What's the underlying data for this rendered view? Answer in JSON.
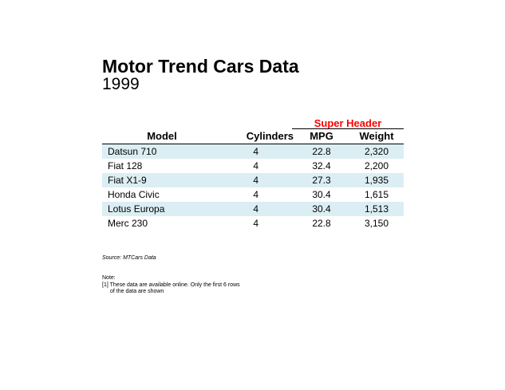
{
  "title": "Motor Trend Cars Data",
  "subtitle": "1999",
  "super_header": "Super Header",
  "super_header_color": "#ff0000",
  "row_shade_color": "#dbeef4",
  "columns": [
    "Model",
    "Cylinders",
    "MPG",
    "Weight"
  ],
  "rows": [
    {
      "model": "Datsun 710",
      "cylinders": "4",
      "mpg": "22.8",
      "weight": "2,320"
    },
    {
      "model": "Fiat 128",
      "cylinders": "4",
      "mpg": "32.4",
      "weight": "2,200"
    },
    {
      "model": "Fiat X1-9",
      "cylinders": "4",
      "mpg": "27.3",
      "weight": "1,935"
    },
    {
      "model": "Honda Civic",
      "cylinders": "4",
      "mpg": "30.4",
      "weight": "1,615"
    },
    {
      "model": "Lotus Europa",
      "cylinders": "4",
      "mpg": "30.4",
      "weight": "1,513"
    },
    {
      "model": "Merc 230",
      "cylinders": "4",
      "mpg": "22.8",
      "weight": "3,150"
    }
  ],
  "source": "Source: MTCars Data",
  "note_label": "Note:",
  "notes": [
    "[1] These data are available online.  Only the first 6 rows",
    "of the data are shown"
  ]
}
